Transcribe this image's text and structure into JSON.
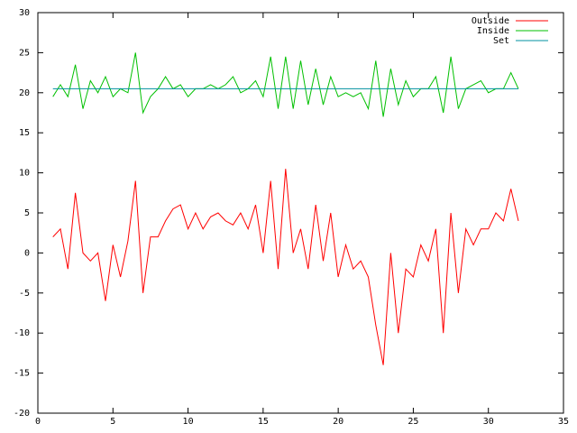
{
  "chart_data": {
    "type": "line",
    "xlim": [
      0,
      35
    ],
    "xticks": [
      0,
      5,
      10,
      15,
      20,
      25,
      30,
      35
    ],
    "ylim": [
      -20,
      30
    ],
    "yticks": [
      -20,
      -15,
      -10,
      -5,
      0,
      5,
      10,
      15,
      20,
      25,
      30
    ],
    "legend": "top-right",
    "series": [
      {
        "name": "Outside",
        "color": "#ff0000",
        "x": [
          1,
          1.5,
          2,
          2.5,
          3,
          3.5,
          4,
          4.5,
          5,
          5.5,
          6,
          6.5,
          7,
          7.5,
          8,
          8.5,
          9,
          9.5,
          10,
          10.5,
          11,
          11.5,
          12,
          12.5,
          13,
          13.5,
          14,
          14.5,
          15,
          15.5,
          16,
          16.5,
          17,
          17.5,
          18,
          18.5,
          19,
          19.5,
          20,
          20.5,
          21,
          21.5,
          22,
          22.5,
          23,
          23.5,
          24,
          24.5,
          25,
          25.5,
          26,
          26.5,
          27,
          27.5,
          28,
          28.5,
          29,
          29.5,
          30,
          30.5,
          31,
          31.5,
          32
        ],
        "values": [
          2,
          3,
          -2,
          7.5,
          0,
          -1,
          0,
          -6,
          1,
          -3,
          1.5,
          9,
          -5,
          2,
          2,
          4,
          5.5,
          6,
          3,
          5,
          3,
          4.5,
          5,
          4,
          3.5,
          5,
          3,
          6,
          0,
          9,
          -2,
          10.5,
          0,
          3,
          -2,
          6,
          -1,
          5,
          -3,
          1,
          -2,
          -1,
          -3,
          -9,
          -14,
          0,
          -10,
          -2,
          -3,
          1,
          -1,
          3,
          -10,
          5,
          -5,
          3,
          1,
          3,
          3,
          5,
          4,
          8,
          4
        ]
      },
      {
        "name": "Inside",
        "color": "#00c000",
        "x": [
          1,
          1.5,
          2,
          2.5,
          3,
          3.5,
          4,
          4.5,
          5,
          5.5,
          6,
          6.5,
          7,
          7.5,
          8,
          8.5,
          9,
          9.5,
          10,
          10.5,
          11,
          11.5,
          12,
          12.5,
          13,
          13.5,
          14,
          14.5,
          15,
          15.5,
          16,
          16.5,
          17,
          17.5,
          18,
          18.5,
          19,
          19.5,
          20,
          20.5,
          21,
          21.5,
          22,
          22.5,
          23,
          23.5,
          24,
          24.5,
          25,
          25.5,
          26,
          26.5,
          27,
          27.5,
          28,
          28.5,
          29,
          29.5,
          30,
          30.5,
          31,
          31.5,
          32
        ],
        "values": [
          19.5,
          21,
          19.5,
          23.5,
          18,
          21.5,
          20,
          22,
          19.5,
          20.5,
          20,
          25,
          17.5,
          19.5,
          20.5,
          22,
          20.5,
          21,
          19.5,
          20.5,
          20.5,
          21,
          20.5,
          21,
          22,
          20,
          20.5,
          21.5,
          19.5,
          24.5,
          18,
          24.5,
          18,
          24,
          18.5,
          23,
          18.5,
          22,
          19.5,
          20,
          19.5,
          20,
          18,
          24,
          17,
          23,
          18.5,
          21.5,
          19.5,
          20.5,
          20.5,
          22,
          17.5,
          24.5,
          18,
          20.5,
          21,
          21.5,
          20,
          20.5,
          20.5,
          22.5,
          20.5
        ]
      },
      {
        "name": "Set",
        "color": "#0090a0",
        "x": [
          1,
          32
        ],
        "values": [
          20.5,
          20.5
        ]
      }
    ]
  }
}
